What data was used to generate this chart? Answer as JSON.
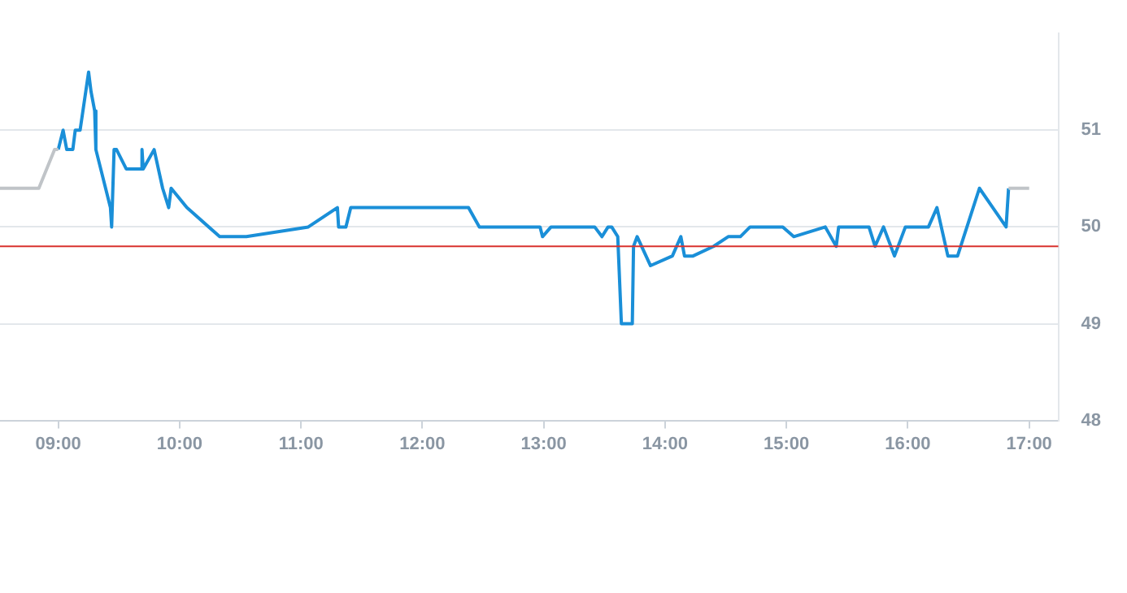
{
  "chart_data": {
    "type": "line",
    "marker": "none",
    "grid": "y",
    "legend": false,
    "xlim": [
      8.52,
      17.24
    ],
    "xticks": [
      {
        "value": 9,
        "label": "09:00"
      },
      {
        "value": 10,
        "label": "10:00"
      },
      {
        "value": 11,
        "label": "11:00"
      },
      {
        "value": 12,
        "label": "12:00"
      },
      {
        "value": 13,
        "label": "13:00"
      },
      {
        "value": 14,
        "label": "14:00"
      },
      {
        "value": 15,
        "label": "15:00"
      },
      {
        "value": 16,
        "label": "16:00"
      },
      {
        "value": 17,
        "label": "17:00"
      }
    ],
    "ylim": [
      48,
      52
    ],
    "yticks": [
      48,
      49,
      50,
      51
    ],
    "ref_lines": [
      {
        "axis": "y",
        "value": 49.8,
        "color": "#d9322e"
      }
    ],
    "series": [
      {
        "color": "#c0c4c8",
        "x": [
          8.52,
          8.84,
          8.97,
          9.0
        ],
        "values": [
          50.4,
          50.4,
          50.8,
          50.8
        ]
      },
      {
        "color": "#c0c4c8",
        "x": [
          16.83,
          17.0
        ],
        "values": [
          50.4,
          50.4
        ]
      },
      {
        "color": "#1a8fd8",
        "x": [
          9.0,
          9.04,
          9.07,
          9.12,
          9.14,
          9.18,
          9.25,
          9.27,
          9.3,
          9.31,
          9.43,
          9.44,
          9.46,
          9.48,
          9.56,
          9.69,
          9.69,
          9.7,
          9.79,
          9.86,
          9.91,
          9.93,
          10.06,
          10.33,
          10.55,
          11.06,
          11.3,
          11.31,
          11.37,
          11.41,
          12.38,
          12.47,
          12.97,
          12.99,
          13.06,
          13.12,
          13.42,
          13.48,
          13.53,
          13.56,
          13.61,
          13.64,
          13.73,
          13.74,
          13.77,
          13.88,
          14.06,
          14.13,
          14.16,
          14.23,
          14.4,
          14.52,
          14.62,
          14.7,
          14.97,
          15.06,
          15.32,
          15.41,
          15.43,
          15.68,
          15.73,
          15.8,
          15.89,
          15.98,
          16.17,
          16.24,
          16.33,
          16.41,
          16.59,
          16.81,
          16.83
        ],
        "values": [
          50.8,
          51.0,
          50.8,
          50.8,
          51.0,
          51.0,
          51.6,
          51.4,
          51.2,
          50.8,
          50.2,
          50.0,
          50.8,
          50.8,
          50.6,
          50.6,
          50.8,
          50.6,
          50.8,
          50.4,
          50.2,
          50.4,
          50.2,
          49.9,
          49.9,
          50.0,
          50.2,
          50.0,
          50.0,
          50.2,
          50.2,
          50.0,
          50.0,
          49.9,
          50.0,
          50.0,
          50.0,
          49.9,
          50.0,
          50.0,
          49.9,
          49.0,
          49.0,
          49.8,
          49.9,
          49.6,
          49.7,
          49.9,
          49.7,
          49.7,
          49.8,
          49.9,
          49.9,
          50.0,
          50.0,
          49.9,
          50.0,
          49.8,
          50.0,
          50.0,
          49.8,
          50.0,
          49.7,
          50.0,
          50.0,
          50.2,
          49.7,
          49.7,
          50.4,
          50.0,
          50.4
        ]
      }
    ]
  }
}
